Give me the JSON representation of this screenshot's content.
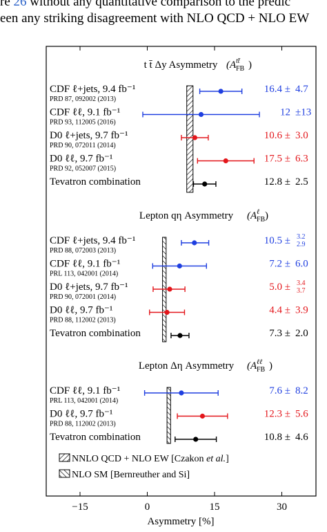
{
  "page": {
    "line1_before_link": "re ",
    "line1_link": "26",
    "line1_after_link": " without any quantitative comparison to the predic",
    "line2": "een any striking disagreement with NLO QCD + NLO EW"
  },
  "chart_data": {
    "type": "scatter",
    "xlabel": "Asymmetry [%]",
    "xlim": [
      -22,
      39
    ],
    "xticks": [
      -15,
      0,
      15,
      30
    ],
    "xtick_labels": [
      "−15",
      "0",
      "15",
      "30"
    ],
    "colors": {
      "CDF": "#1f3fe0",
      "D0": "#e3161b",
      "Tevatron": "#000000"
    },
    "legend": [
      {
        "hatch": "forward",
        "label_prefix": "NNLO QCD + NLO EW [Czakon ",
        "label_italic": "et al.",
        "label_suffix": "]"
      },
      {
        "hatch": "backward",
        "label_prefix": "NLO SM [Bernreuther and Si]",
        "label_italic": "",
        "label_suffix": ""
      }
    ],
    "panels": [
      {
        "title": "t t̄ Δy Asymmetry",
        "title_symbol": "A_FB^{tt̄}",
        "prediction": {
          "center": 9.5,
          "halfwidth": 0.7,
          "hatch": "forward"
        },
        "rows": [
          {
            "label": "CDF ℓ+jets, 9.4 fb⁻¹",
            "ref": "PRD 87, 092002 (2013)",
            "exp": "CDF",
            "value": 16.4,
            "lo": 11.7,
            "hi": 21.1,
            "value_text": "16.4 ±",
            "err_text": "4.7",
            "err_up": "",
            "err_down": ""
          },
          {
            "label": "CDF ℓℓ, 9.1 fb⁻¹",
            "ref": "PRD 93, 112005 (2016)",
            "exp": "CDF",
            "value": 12,
            "lo": -1,
            "hi": 25,
            "value_text": "12",
            "err_text": "±13",
            "err_up": "",
            "err_down": ""
          },
          {
            "label": "D0 ℓ+jets, 9.7 fb⁻¹",
            "ref": "PRD 90, 072011 (2014)",
            "exp": "D0",
            "value": 10.6,
            "lo": 7.6,
            "hi": 13.6,
            "value_text": "10.6 ±",
            "err_text": "3.0",
            "err_up": "",
            "err_down": ""
          },
          {
            "label": "D0 ℓℓ, 9.7 fb⁻¹",
            "ref": "PRD 92, 052007 (2015)",
            "exp": "D0",
            "value": 17.5,
            "lo": 11.2,
            "hi": 23.8,
            "value_text": "17.5 ±",
            "err_text": "6.3",
            "err_up": "",
            "err_down": ""
          },
          {
            "label": "Tevatron combination",
            "ref": "",
            "exp": "Tevatron",
            "value": 12.8,
            "lo": 10.3,
            "hi": 15.3,
            "value_text": "12.8 ±",
            "err_text": "2.5",
            "err_up": "",
            "err_down": ""
          }
        ]
      },
      {
        "title": "Lepton qη Asymmetry",
        "title_symbol": "A_FB^{ℓ}",
        "prediction": {
          "center": 3.8,
          "halfwidth": 0.4,
          "hatch": "backward"
        },
        "rows": [
          {
            "label": "CDF ℓ+jets, 9.4 fb⁻¹",
            "ref": "PRD 88, 072003 (2013)",
            "exp": "CDF",
            "value": 10.5,
            "lo": 7.6,
            "hi": 13.7,
            "value_text": "10.5 ±",
            "err_text": "",
            "err_up": "3.2",
            "err_down": "2.9"
          },
          {
            "label": "CDF ℓℓ, 9.1 fb⁻¹",
            "ref": "PRL 113, 042001 (2014)",
            "exp": "CDF",
            "value": 7.2,
            "lo": 1.2,
            "hi": 13.2,
            "value_text": "7.2 ±",
            "err_text": "6.0",
            "err_up": "",
            "err_down": ""
          },
          {
            "label": "D0 ℓ+jets, 9.7 fb⁻¹",
            "ref": "PRD 90, 072001 (2014)",
            "exp": "D0",
            "value": 5.0,
            "lo": 1.3,
            "hi": 8.4,
            "value_text": "5.0 ±",
            "err_text": "",
            "err_up": "3.4",
            "err_down": "3.7"
          },
          {
            "label": "D0 ℓℓ, 9.7 fb⁻¹",
            "ref": "PRD 88, 112002 (2013)",
            "exp": "D0",
            "value": 4.4,
            "lo": 0.5,
            "hi": 8.3,
            "value_text": "4.4 ±",
            "err_text": "3.9",
            "err_up": "",
            "err_down": ""
          },
          {
            "label": "Tevatron combination",
            "ref": "",
            "exp": "Tevatron",
            "value": 7.3,
            "lo": 5.3,
            "hi": 9.3,
            "value_text": "7.3 ±",
            "err_text": "2.0",
            "err_up": "",
            "err_down": ""
          }
        ]
      },
      {
        "title": "Lepton Δη Asymmetry",
        "title_symbol": "A_FB^{ℓℓ}",
        "prediction": {
          "center": 4.8,
          "halfwidth": 0.4,
          "hatch": "backward"
        },
        "rows": [
          {
            "label": "CDF ℓℓ, 9.1 fb⁻¹",
            "ref": "PRL 113, 042001 (2014)",
            "exp": "CDF",
            "value": 7.6,
            "lo": -0.6,
            "hi": 15.8,
            "value_text": "7.6 ±",
            "err_text": "8.2",
            "err_up": "",
            "err_down": ""
          },
          {
            "label": "D0 ℓℓ, 9.7 fb⁻¹",
            "ref": "PRD 88, 112002 (2013)",
            "exp": "D0",
            "value": 12.3,
            "lo": 6.7,
            "hi": 17.9,
            "value_text": "12.3 ±",
            "err_text": "5.6",
            "err_up": "",
            "err_down": ""
          },
          {
            "label": "Tevatron combination",
            "ref": "",
            "exp": "Tevatron",
            "value": 10.8,
            "lo": 6.2,
            "hi": 15.4,
            "value_text": "10.8 ±",
            "err_text": "4.6",
            "err_up": "",
            "err_down": ""
          }
        ]
      }
    ]
  }
}
